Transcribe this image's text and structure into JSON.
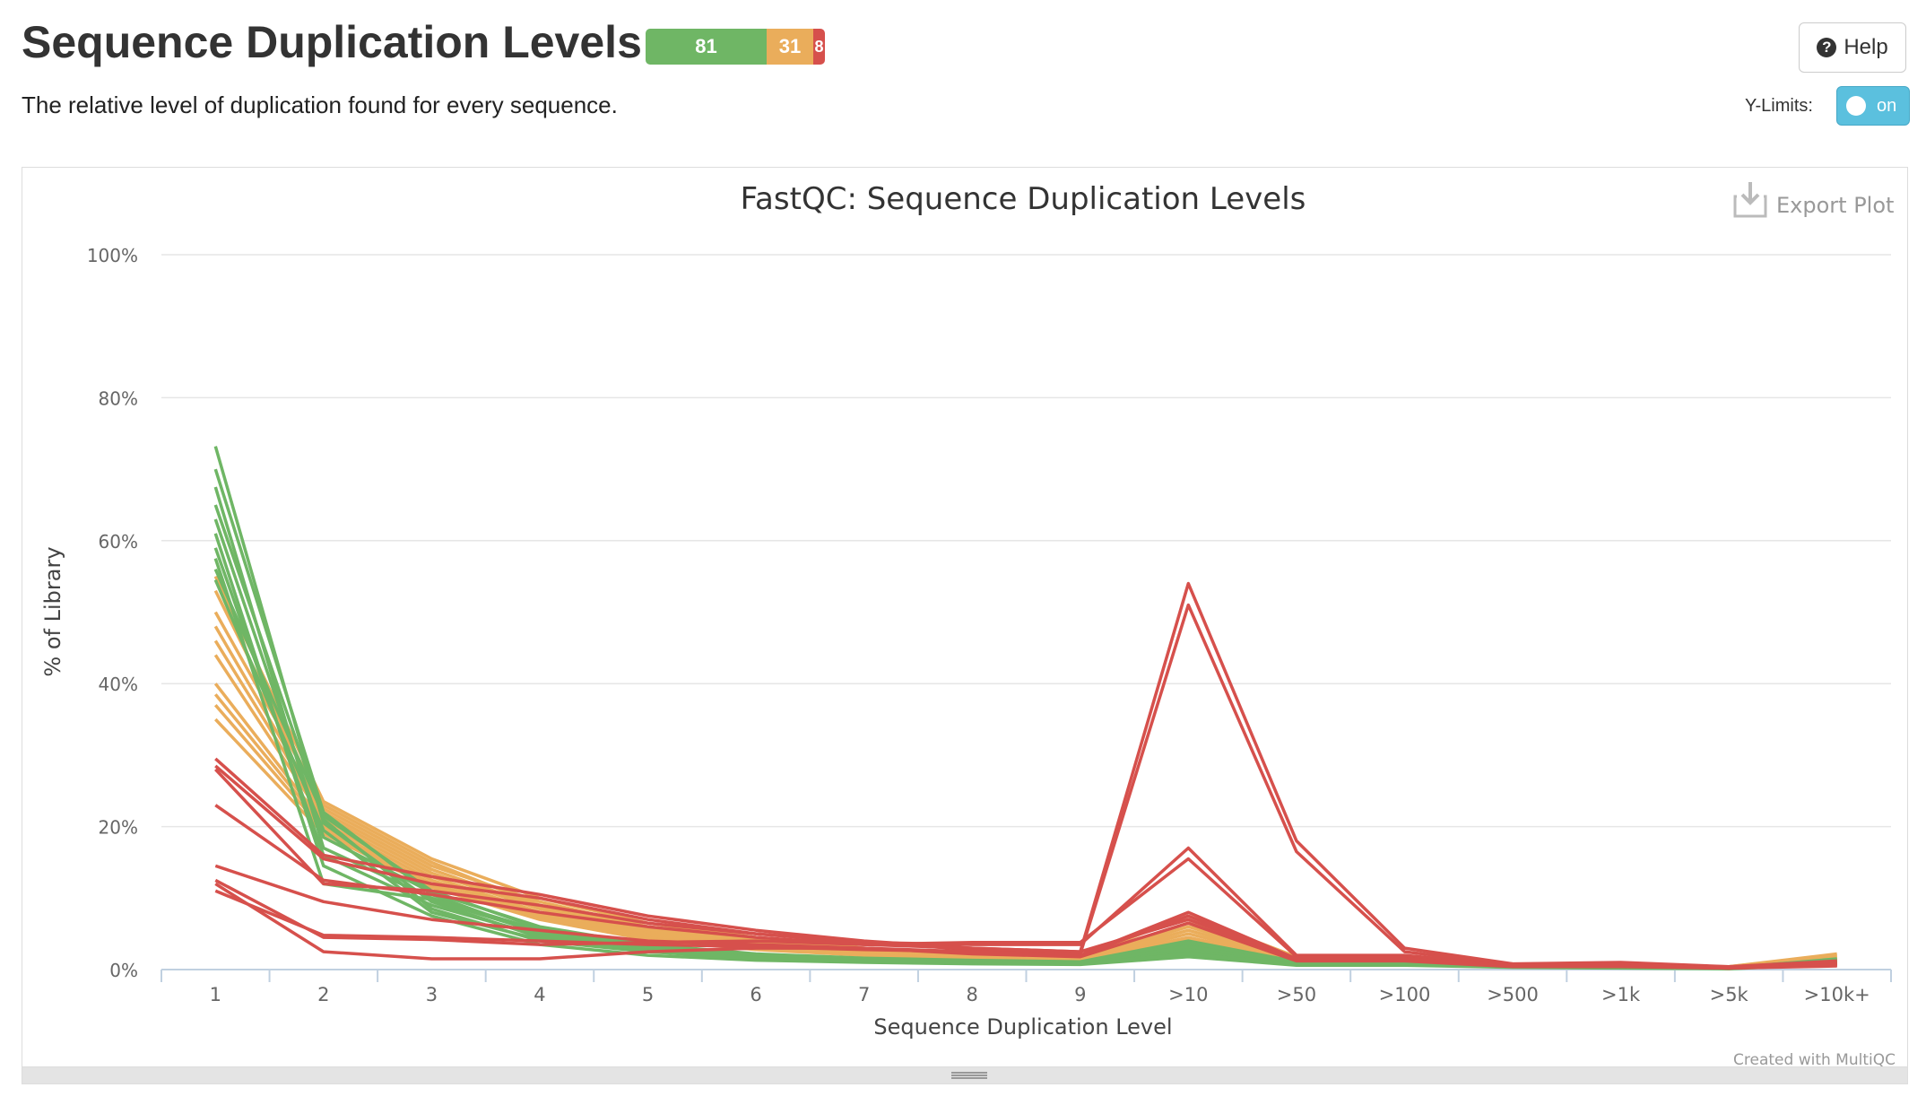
{
  "section": {
    "title": "Sequence Duplication Levels",
    "description": "The relative level of duplication found for every sequence."
  },
  "status": {
    "pass": "81",
    "warn": "31",
    "fail": "8",
    "colors": {
      "pass": "#6fb665",
      "warn": "#eaad5b",
      "fail": "#d6504c"
    }
  },
  "controls": {
    "help_label": "Help",
    "help_icon": "question-circle-icon",
    "ylimits_label": "Y-Limits:",
    "toggle_label": "on"
  },
  "plot": {
    "export_label": "Export Plot",
    "export_icon": "download-icon",
    "credit": "Created with MultiQC"
  },
  "chart_data": {
    "type": "line",
    "title": "FastQC: Sequence Duplication Levels",
    "xlabel": "Sequence Duplication Level",
    "ylabel": "% of Library",
    "categories": [
      "1",
      "2",
      "3",
      "4",
      "5",
      "6",
      "7",
      "8",
      "9",
      ">10",
      ">50",
      ">100",
      ">500",
      ">1k",
      ">5k",
      ">10k+"
    ],
    "y_ticks": [
      "0%",
      "20%",
      "40%",
      "60%",
      "80%",
      "100%"
    ],
    "ylim": [
      0,
      100
    ],
    "grid": true,
    "legend": "none",
    "series": [
      {
        "status": "pass",
        "color": "#6fb665",
        "values": [
          73.2,
          20.5,
          9.5,
          4.5,
          2.8,
          1.6,
          1.3,
          1.0,
          0.8,
          2.5,
          0.8,
          0.8,
          0.4,
          0.3,
          0.2,
          1.0
        ]
      },
      {
        "status": "pass",
        "color": "#6fb665",
        "values": [
          70.0,
          22.0,
          10.5,
          5.0,
          3.0,
          1.8,
          1.4,
          1.1,
          0.9,
          3.0,
          0.9,
          0.9,
          0.5,
          0.3,
          0.2,
          1.2
        ]
      },
      {
        "status": "pass",
        "color": "#6fb665",
        "values": [
          67.5,
          17.0,
          10.0,
          5.5,
          3.2,
          2.0,
          1.5,
          1.2,
          1.0,
          3.5,
          1.0,
          1.0,
          0.5,
          0.4,
          0.2,
          1.0
        ]
      },
      {
        "status": "pass",
        "color": "#6fb665",
        "values": [
          65.0,
          21.0,
          8.5,
          4.0,
          2.5,
          1.5,
          1.2,
          1.0,
          0.8,
          2.0,
          0.7,
          0.7,
          0.4,
          0.3,
          0.2,
          0.9
        ]
      },
      {
        "status": "pass",
        "color": "#6fb665",
        "values": [
          63.0,
          18.5,
          10.8,
          6.0,
          3.5,
          2.2,
          1.6,
          1.3,
          1.1,
          4.0,
          1.1,
          1.1,
          0.6,
          0.4,
          0.3,
          1.4
        ]
      },
      {
        "status": "pass",
        "color": "#6fb665",
        "values": [
          61.0,
          14.5,
          7.5,
          3.5,
          2.0,
          1.3,
          1.0,
          0.8,
          0.7,
          1.8,
          0.6,
          0.6,
          0.3,
          0.2,
          0.1,
          0.8
        ]
      },
      {
        "status": "pass",
        "color": "#6fb665",
        "values": [
          59.0,
          16.0,
          9.0,
          4.8,
          2.9,
          1.7,
          1.3,
          1.0,
          0.9,
          2.8,
          0.8,
          0.9,
          0.4,
          0.3,
          0.2,
          1.1
        ]
      },
      {
        "status": "pass",
        "color": "#6fb665",
        "values": [
          57.5,
          12.0,
          9.8,
          5.2,
          3.1,
          1.9,
          1.4,
          1.1,
          0.9,
          3.2,
          0.9,
          1.0,
          0.5,
          0.3,
          0.2,
          1.3
        ]
      },
      {
        "status": "pass",
        "color": "#6fb665",
        "values": [
          56.0,
          21.5,
          11.0,
          5.8,
          3.4,
          2.1,
          1.5,
          1.2,
          1.0,
          3.8,
          1.0,
          1.0,
          0.5,
          0.4,
          0.2,
          1.5
        ]
      },
      {
        "status": "pass",
        "color": "#6fb665",
        "values": [
          54.5,
          19.5,
          8.0,
          4.2,
          2.6,
          1.6,
          1.2,
          1.0,
          0.8,
          2.2,
          0.7,
          0.8,
          0.4,
          0.3,
          0.2,
          1.0
        ]
      },
      {
        "status": "warn",
        "color": "#eaad5b",
        "values": [
          55.0,
          23.5,
          15.5,
          10.0,
          6.5,
          4.5,
          3.0,
          2.2,
          1.8,
          7.5,
          1.8,
          1.5,
          0.8,
          0.6,
          0.4,
          2.2
        ]
      },
      {
        "status": "warn",
        "color": "#eaad5b",
        "values": [
          53.0,
          22.5,
          14.5,
          9.5,
          6.0,
          4.2,
          2.8,
          2.0,
          1.6,
          6.5,
          1.6,
          1.4,
          0.7,
          0.5,
          0.4,
          2.0
        ]
      },
      {
        "status": "warn",
        "color": "#eaad5b",
        "values": [
          50.0,
          23.0,
          15.0,
          9.0,
          5.8,
          4.0,
          2.7,
          1.9,
          1.5,
          6.0,
          1.5,
          1.3,
          0.7,
          0.5,
          0.3,
          1.8
        ]
      },
      {
        "status": "warn",
        "color": "#eaad5b",
        "values": [
          48.0,
          22.0,
          14.0,
          8.8,
          5.5,
          3.8,
          2.6,
          1.8,
          1.4,
          5.5,
          1.4,
          1.2,
          0.6,
          0.5,
          0.3,
          1.7
        ]
      },
      {
        "status": "warn",
        "color": "#eaad5b",
        "values": [
          46.0,
          21.5,
          13.5,
          8.5,
          5.2,
          3.6,
          2.5,
          1.7,
          1.3,
          5.0,
          1.3,
          1.2,
          0.6,
          0.4,
          0.3,
          1.6
        ]
      },
      {
        "status": "warn",
        "color": "#eaad5b",
        "values": [
          44.0,
          21.0,
          13.0,
          8.0,
          5.0,
          3.4,
          2.4,
          1.6,
          1.2,
          4.5,
          1.2,
          1.1,
          0.6,
          0.4,
          0.3,
          1.5
        ]
      },
      {
        "status": "warn",
        "color": "#eaad5b",
        "values": [
          40.0,
          20.5,
          12.5,
          7.8,
          4.8,
          3.2,
          2.3,
          1.5,
          1.2,
          4.2,
          1.1,
          1.0,
          0.5,
          0.4,
          0.3,
          1.4
        ]
      },
      {
        "status": "warn",
        "color": "#eaad5b",
        "values": [
          38.5,
          20.0,
          12.0,
          7.5,
          4.6,
          3.0,
          2.2,
          1.5,
          1.1,
          4.0,
          1.1,
          1.0,
          0.5,
          0.4,
          0.2,
          1.3
        ]
      },
      {
        "status": "warn",
        "color": "#eaad5b",
        "values": [
          37.0,
          19.5,
          11.8,
          7.2,
          4.4,
          2.9,
          2.1,
          1.4,
          1.1,
          3.8,
          1.0,
          1.0,
          0.5,
          0.3,
          0.2,
          1.2
        ]
      },
      {
        "status": "warn",
        "color": "#eaad5b",
        "values": [
          35.0,
          19.0,
          11.5,
          7.0,
          4.2,
          2.8,
          2.0,
          1.4,
          1.0,
          3.5,
          1.0,
          0.9,
          0.5,
          0.3,
          0.2,
          1.1
        ]
      },
      {
        "status": "fail",
        "color": "#d6504c",
        "values": [
          29.5,
          16.0,
          13.0,
          10.5,
          7.5,
          5.5,
          4.0,
          3.0,
          2.5,
          54.0,
          18.0,
          3.0,
          0.8,
          1.0,
          0.4,
          1.2
        ]
      },
      {
        "status": "fail",
        "color": "#d6504c",
        "values": [
          28.5,
          15.5,
          12.0,
          10.0,
          7.0,
          5.0,
          3.8,
          2.8,
          2.2,
          51.0,
          16.5,
          2.5,
          0.7,
          0.9,
          0.3,
          1.0
        ]
      },
      {
        "status": "fail",
        "color": "#d6504c",
        "values": [
          28.0,
          12.0,
          11.0,
          9.0,
          6.5,
          5.0,
          3.8,
          3.5,
          3.5,
          17.0,
          2.0,
          2.0,
          0.6,
          0.7,
          0.3,
          0.9
        ]
      },
      {
        "status": "fail",
        "color": "#d6504c",
        "values": [
          23.0,
          12.5,
          10.5,
          8.0,
          6.0,
          4.5,
          3.5,
          3.8,
          3.8,
          15.5,
          1.8,
          1.8,
          0.6,
          0.6,
          0.3,
          0.8
        ]
      },
      {
        "status": "fail",
        "color": "#d6504c",
        "values": [
          14.5,
          9.5,
          7.0,
          5.5,
          4.0,
          3.5,
          3.0,
          2.5,
          2.0,
          8.0,
          1.5,
          1.5,
          0.5,
          0.5,
          0.2,
          0.7
        ]
      },
      {
        "status": "fail",
        "color": "#d6504c",
        "values": [
          12.5,
          4.5,
          4.2,
          3.5,
          3.8,
          4.0,
          3.5,
          3.0,
          2.5,
          7.0,
          1.5,
          1.5,
          0.5,
          0.5,
          0.2,
          0.6
        ]
      },
      {
        "status": "fail",
        "color": "#d6504c",
        "values": [
          12.0,
          2.5,
          1.5,
          1.5,
          2.5,
          3.0,
          3.0,
          2.2,
          1.8,
          6.5,
          1.2,
          1.2,
          0.4,
          0.4,
          0.2,
          0.5
        ]
      },
      {
        "status": "fail",
        "color": "#d6504c",
        "values": [
          11.0,
          4.8,
          4.5,
          4.0,
          3.5,
          3.2,
          2.8,
          2.5,
          2.0,
          7.5,
          1.5,
          1.5,
          0.5,
          0.5,
          0.2,
          0.6
        ]
      }
    ]
  }
}
